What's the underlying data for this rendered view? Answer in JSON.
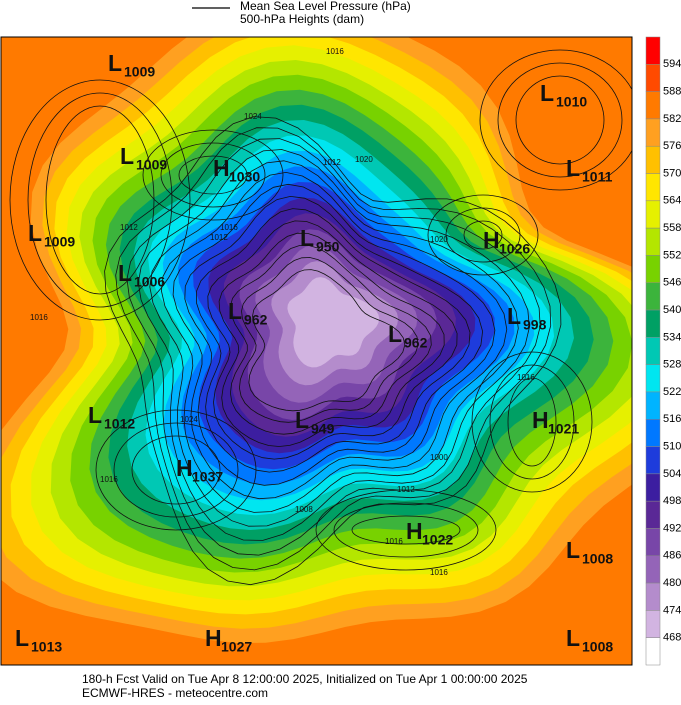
{
  "legend": {
    "pressure": "Mean Sea Level Pressure (hPa)",
    "heights": "500-hPa Heights (dam)"
  },
  "colorbar": {
    "ticks": [
      594,
      588,
      582,
      576,
      570,
      564,
      558,
      552,
      546,
      540,
      534,
      528,
      522,
      516,
      510,
      504,
      498,
      492,
      486,
      480,
      474,
      468
    ],
    "colors": [
      "#ff0000",
      "#ff4a00",
      "#ff7a00",
      "#ffa020",
      "#ffc000",
      "#ffe600",
      "#e6f000",
      "#b4e600",
      "#78d200",
      "#3cb43c",
      "#00a064",
      "#00c8b4",
      "#00e6f0",
      "#00b4ff",
      "#0078ff",
      "#1e3cdc",
      "#3c1ea0",
      "#5a2896",
      "#7846a8",
      "#9464b8",
      "#b48ccc",
      "#d2b4e1",
      "#ffffff"
    ]
  },
  "centers": [
    {
      "type": "L",
      "value": 1009
    },
    {
      "type": "L",
      "value": 1010
    },
    {
      "type": "L",
      "value": 1009
    },
    {
      "type": "H",
      "value": 1030
    },
    {
      "type": "L",
      "value": 1011
    },
    {
      "type": "L",
      "value": 1009
    },
    {
      "type": "L",
      "value": 950
    },
    {
      "type": "H",
      "value": 1026
    },
    {
      "type": "L",
      "value": 1006
    },
    {
      "type": "L",
      "value": 962
    },
    {
      "type": "L",
      "value": 998
    },
    {
      "type": "L",
      "value": 962
    },
    {
      "type": "L",
      "value": 1012
    },
    {
      "type": "H",
      "value": 1021
    },
    {
      "type": "L",
      "value": 949
    },
    {
      "type": "H",
      "value": 1037
    },
    {
      "type": "H",
      "value": 1022
    },
    {
      "type": "L",
      "value": 1008
    },
    {
      "type": "L",
      "value": 1013
    },
    {
      "type": "H",
      "value": 1027
    },
    {
      "type": "L",
      "value": 1008
    }
  ],
  "contour_labels": [
    1016,
    1024,
    1012,
    1020,
    1016,
    1012,
    1016,
    1012,
    1020,
    1024,
    1016,
    1016,
    1000,
    1012,
    1008,
    1016,
    1016
  ],
  "footer": {
    "line1": "180-h Fcst Valid on Tue Apr  8 12:00:00 2025, Initialized on Tue Apr  1 00:00:00 2025",
    "line2": "ECMWF-HRES  - meteocentre.com"
  }
}
